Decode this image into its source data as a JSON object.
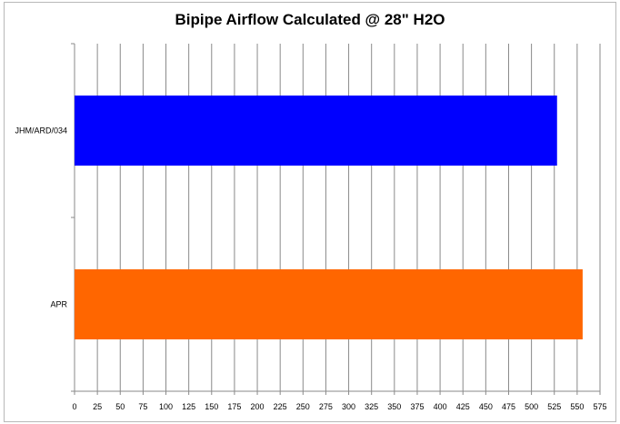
{
  "chart_data": {
    "type": "bar",
    "orientation": "horizontal",
    "title": "Bipipe Airflow Calculated @ 28\" H2O",
    "xlabel": "",
    "ylabel": "",
    "categories": [
      "JHM/ARD/034",
      "APR"
    ],
    "values": [
      528,
      556
    ],
    "colors": [
      "#0000ff",
      "#ff6600"
    ],
    "xlim": [
      0,
      575
    ],
    "xticks": [
      0,
      25,
      50,
      75,
      100,
      125,
      150,
      175,
      200,
      225,
      250,
      275,
      300,
      325,
      350,
      375,
      400,
      425,
      450,
      475,
      500,
      525,
      550,
      575
    ],
    "grid": "vertical",
    "legend": "none"
  }
}
